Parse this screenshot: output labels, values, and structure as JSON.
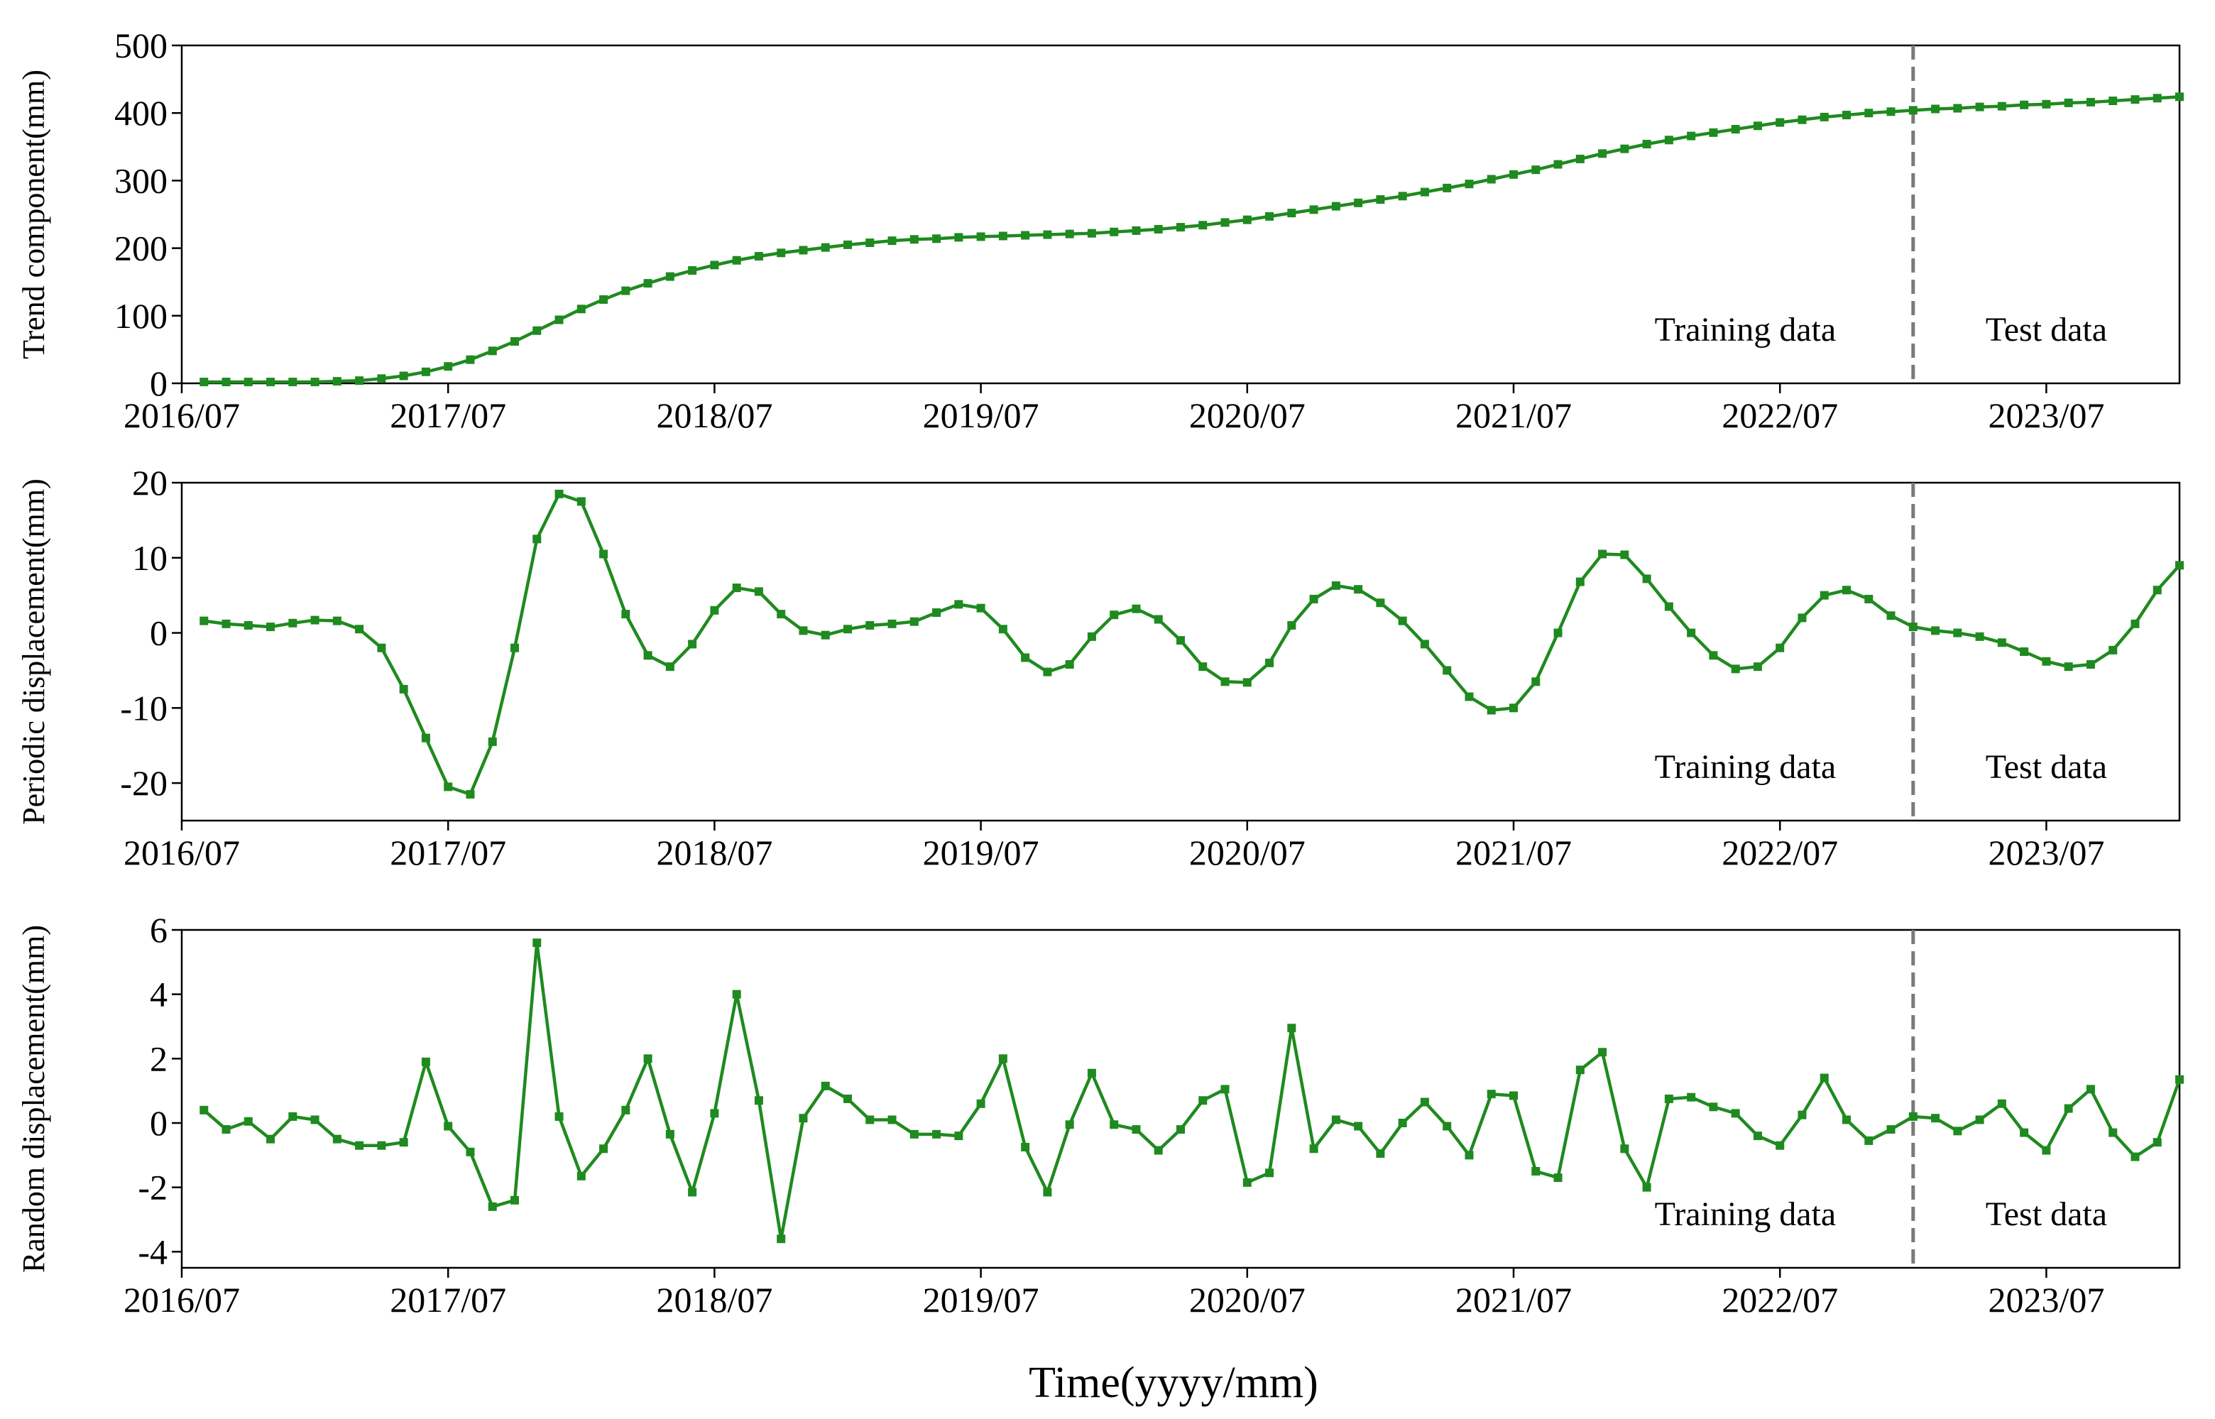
{
  "chart_data": [
    {
      "type": "line",
      "ylabel": "Trend component(mm)",
      "x": [
        "2016/08",
        "2016/09",
        "2016/10",
        "2016/11",
        "2016/12",
        "2017/01",
        "2017/02",
        "2017/03",
        "2017/04",
        "2017/05",
        "2017/06",
        "2017/07",
        "2017/08",
        "2017/09",
        "2017/10",
        "2017/11",
        "2017/12",
        "2018/01",
        "2018/02",
        "2018/03",
        "2018/04",
        "2018/05",
        "2018/06",
        "2018/07",
        "2018/08",
        "2018/09",
        "2018/10",
        "2018/11",
        "2018/12",
        "2019/01",
        "2019/02",
        "2019/03",
        "2019/04",
        "2019/05",
        "2019/06",
        "2019/07",
        "2019/08",
        "2019/09",
        "2019/10",
        "2019/11",
        "2019/12",
        "2020/01",
        "2020/02",
        "2020/03",
        "2020/04",
        "2020/05",
        "2020/06",
        "2020/07",
        "2020/08",
        "2020/09",
        "2020/10",
        "2020/11",
        "2020/12",
        "2021/01",
        "2021/02",
        "2021/03",
        "2021/04",
        "2021/05",
        "2021/06",
        "2021/07",
        "2021/08",
        "2021/09",
        "2021/10",
        "2021/11",
        "2021/12",
        "2022/01",
        "2022/02",
        "2022/03",
        "2022/04",
        "2022/05",
        "2022/06",
        "2022/07",
        "2022/08",
        "2022/09",
        "2022/10",
        "2022/11",
        "2022/12",
        "2023/01",
        "2023/02",
        "2023/03",
        "2023/04",
        "2023/05",
        "2023/06",
        "2023/07",
        "2023/08",
        "2023/09",
        "2023/10",
        "2023/11",
        "2023/12",
        "2024/01"
      ],
      "series": [
        {
          "color": "#1f8a1f",
          "values": [
            2,
            2,
            2,
            2,
            2,
            2,
            3,
            4,
            7,
            11,
            17,
            25,
            35,
            48,
            62,
            78,
            94,
            110,
            124,
            137,
            148,
            158,
            167,
            175,
            182,
            188,
            193,
            197,
            201,
            205,
            208,
            211,
            213,
            214,
            216,
            217,
            218,
            219,
            220,
            221,
            222,
            224,
            226,
            228,
            231,
            234,
            238,
            242,
            247,
            252,
            257,
            262,
            267,
            272,
            277,
            283,
            289,
            295,
            302,
            309,
            316,
            324,
            332,
            340,
            347,
            354,
            360,
            366,
            371,
            376,
            381,
            386,
            390,
            394,
            397,
            400,
            402,
            404,
            406,
            407,
            409,
            410,
            412,
            413,
            415,
            416,
            418,
            420,
            422,
            424
          ]
        }
      ],
      "xlim": [
        "2016/07",
        "2024/01"
      ],
      "xticks": [
        "2016/07",
        "2017/07",
        "2018/07",
        "2019/07",
        "2020/07",
        "2021/07",
        "2022/07",
        "2023/07"
      ],
      "ylim": [
        0,
        500
      ],
      "yticks": [
        0,
        100,
        200,
        300,
        400,
        500
      ],
      "split": "2023/01",
      "annotations": [
        "Training data",
        "Test data"
      ]
    },
    {
      "type": "line",
      "ylabel": "Periodic displacement(mm)",
      "x": [
        "2016/08",
        "2016/09",
        "2016/10",
        "2016/11",
        "2016/12",
        "2017/01",
        "2017/02",
        "2017/03",
        "2017/04",
        "2017/05",
        "2017/06",
        "2017/07",
        "2017/08",
        "2017/09",
        "2017/10",
        "2017/11",
        "2017/12",
        "2018/01",
        "2018/02",
        "2018/03",
        "2018/04",
        "2018/05",
        "2018/06",
        "2018/07",
        "2018/08",
        "2018/09",
        "2018/10",
        "2018/11",
        "2018/12",
        "2019/01",
        "2019/02",
        "2019/03",
        "2019/04",
        "2019/05",
        "2019/06",
        "2019/07",
        "2019/08",
        "2019/09",
        "2019/10",
        "2019/11",
        "2019/12",
        "2020/01",
        "2020/02",
        "2020/03",
        "2020/04",
        "2020/05",
        "2020/06",
        "2020/07",
        "2020/08",
        "2020/09",
        "2020/10",
        "2020/11",
        "2020/12",
        "2021/01",
        "2021/02",
        "2021/03",
        "2021/04",
        "2021/05",
        "2021/06",
        "2021/07",
        "2021/08",
        "2021/09",
        "2021/10",
        "2021/11",
        "2021/12",
        "2022/01",
        "2022/02",
        "2022/03",
        "2022/04",
        "2022/05",
        "2022/06",
        "2022/07",
        "2022/08",
        "2022/09",
        "2022/10",
        "2022/11",
        "2022/12",
        "2023/01",
        "2023/02",
        "2023/03",
        "2023/04",
        "2023/05",
        "2023/06",
        "2023/07",
        "2023/08",
        "2023/09",
        "2023/10",
        "2023/11",
        "2023/12",
        "2024/01"
      ],
      "series": [
        {
          "color": "#1f8a1f",
          "values": [
            1.6,
            1.2,
            1,
            0.8,
            1.3,
            1.7,
            1.6,
            0.5,
            -2,
            -7.5,
            -14,
            -20.5,
            -21.5,
            -14.5,
            -2,
            12.5,
            18.5,
            17.5,
            10.5,
            2.5,
            -3,
            -4.5,
            -1.5,
            3,
            6,
            5.5,
            2.5,
            0.3,
            -0.3,
            0.5,
            1,
            1.2,
            1.5,
            2.7,
            3.8,
            3.3,
            0.5,
            -3.3,
            -5.2,
            -4.2,
            -0.5,
            2.4,
            3.2,
            1.8,
            -1,
            -4.5,
            -6.5,
            -6.6,
            -4,
            1,
            4.5,
            6.3,
            5.8,
            4,
            1.6,
            -1.5,
            -5,
            -8.5,
            -10.3,
            -10,
            -6.5,
            0,
            6.8,
            10.5,
            10.4,
            7.2,
            3.5,
            0,
            -3,
            -4.8,
            -4.5,
            -2,
            2,
            5,
            5.7,
            4.5,
            2.3,
            0.8,
            0.3,
            0,
            -0.5,
            -1.3,
            -2.5,
            -3.8,
            -4.5,
            -4.2,
            -2.3,
            1.2,
            5.7,
            9
          ]
        }
      ],
      "xlim": [
        "2016/07",
        "2024/01"
      ],
      "xticks": [
        "2016/07",
        "2017/07",
        "2018/07",
        "2019/07",
        "2020/07",
        "2021/07",
        "2022/07",
        "2023/07"
      ],
      "ylim": [
        -25,
        20
      ],
      "yticks": [
        -20,
        -10,
        0,
        10,
        20
      ],
      "split": "2023/01",
      "annotations": [
        "Training data",
        "Test data"
      ]
    },
    {
      "type": "line",
      "ylabel": "Random displacement(mm)",
      "xlabel": "Time(yyyy/mm)",
      "x": [
        "2016/08",
        "2016/09",
        "2016/10",
        "2016/11",
        "2016/12",
        "2017/01",
        "2017/02",
        "2017/03",
        "2017/04",
        "2017/05",
        "2017/06",
        "2017/07",
        "2017/08",
        "2017/09",
        "2017/10",
        "2017/11",
        "2017/12",
        "2018/01",
        "2018/02",
        "2018/03",
        "2018/04",
        "2018/05",
        "2018/06",
        "2018/07",
        "2018/08",
        "2018/09",
        "2018/10",
        "2018/11",
        "2018/12",
        "2019/01",
        "2019/02",
        "2019/03",
        "2019/04",
        "2019/05",
        "2019/06",
        "2019/07",
        "2019/08",
        "2019/09",
        "2019/10",
        "2019/11",
        "2019/12",
        "2020/01",
        "2020/02",
        "2020/03",
        "2020/04",
        "2020/05",
        "2020/06",
        "2020/07",
        "2020/08",
        "2020/09",
        "2020/10",
        "2020/11",
        "2020/12",
        "2021/01",
        "2021/02",
        "2021/03",
        "2021/04",
        "2021/05",
        "2021/06",
        "2021/07",
        "2021/08",
        "2021/09",
        "2021/10",
        "2021/11",
        "2021/12",
        "2022/01",
        "2022/02",
        "2022/03",
        "2022/04",
        "2022/05",
        "2022/06",
        "2022/07",
        "2022/08",
        "2022/09",
        "2022/10",
        "2022/11",
        "2022/12",
        "2023/01",
        "2023/02",
        "2023/03",
        "2023/04",
        "2023/05",
        "2023/06",
        "2023/07",
        "2023/08",
        "2023/09",
        "2023/10",
        "2023/11",
        "2023/12",
        "2024/01"
      ],
      "series": [
        {
          "color": "#1f8a1f",
          "values": [
            0.4,
            -0.2,
            0.05,
            -0.5,
            0.2,
            0.1,
            -0.5,
            -0.7,
            -0.7,
            -0.6,
            1.9,
            -0.1,
            -0.9,
            -2.6,
            -2.4,
            5.6,
            0.2,
            -1.65,
            -0.8,
            0.4,
            2.0,
            -0.35,
            -2.15,
            0.3,
            4.0,
            0.7,
            -3.6,
            0.15,
            1.15,
            0.75,
            0.1,
            0.1,
            -0.35,
            -0.35,
            -0.4,
            0.6,
            2.0,
            -0.75,
            -2.15,
            -0.05,
            1.55,
            -0.05,
            -0.2,
            -0.85,
            -0.2,
            0.7,
            1.05,
            -1.85,
            -1.55,
            2.95,
            -0.8,
            0.1,
            -0.1,
            -0.95,
            0.0,
            0.65,
            -0.1,
            -1.0,
            0.9,
            0.85,
            -1.5,
            -1.7,
            1.65,
            2.2,
            -0.8,
            -2.0,
            0.75,
            0.8,
            0.5,
            0.3,
            -0.4,
            -0.7,
            0.25,
            1.4,
            0.1,
            -0.55,
            -0.2,
            0.2,
            0.15,
            -0.25,
            0.1,
            0.6,
            -0.3,
            -0.85,
            0.45,
            1.05,
            -0.3,
            -1.05,
            -0.6,
            1.35
          ]
        }
      ],
      "xlim": [
        "2016/07",
        "2024/01"
      ],
      "xticks": [
        "2016/07",
        "2017/07",
        "2018/07",
        "2019/07",
        "2020/07",
        "2021/07",
        "2022/07",
        "2023/07"
      ],
      "ylim": [
        -4.5,
        6
      ],
      "yticks": [
        -4,
        -2,
        0,
        2,
        4,
        6
      ],
      "split": "2023/01",
      "annotations": [
        "Training data",
        "Test data"
      ]
    }
  ]
}
